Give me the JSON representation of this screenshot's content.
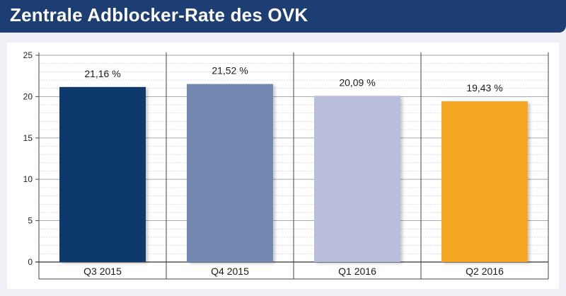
{
  "header": {
    "title": "Zentrale Adblocker-Rate des OVK"
  },
  "chart_data": {
    "type": "bar",
    "title": "Zentrale Adblocker-Rate des OVK",
    "categories": [
      "Q3 2015",
      "Q4 2015",
      "Q1 2016",
      "Q2 2016"
    ],
    "values": [
      21.16,
      21.52,
      20.09,
      19.43
    ],
    "data_labels": [
      "21,16 %",
      "21,52 %",
      "20,09 %",
      "19,43 %"
    ],
    "bar_colors": [
      "#0d3a6b",
      "#7389b1",
      "#b9bedb",
      "#f5a623"
    ],
    "ylim": [
      0,
      25
    ],
    "yticks": [
      0,
      5,
      10,
      15,
      20,
      25
    ],
    "xlabel": "",
    "ylabel": "",
    "grid": true,
    "legend": "none"
  }
}
